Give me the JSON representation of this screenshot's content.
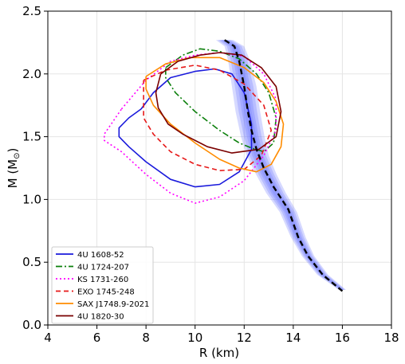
{
  "chart_data": {
    "type": "line",
    "xlabel": "R (km)",
    "ylabel_main": "M (M",
    "ylabel_sub": "⊙",
    "ylabel_close": ")",
    "xlim": [
      4,
      18
    ],
    "ylim": [
      0.0,
      2.5
    ],
    "xticks": [
      4,
      6,
      8,
      10,
      12,
      14,
      16,
      18
    ],
    "yticks": [
      0.0,
      0.5,
      1.0,
      1.5,
      2.0,
      2.5
    ],
    "xtick_labels": [
      "4",
      "6",
      "8",
      "10",
      "12",
      "14",
      "16",
      "18"
    ],
    "ytick_labels": [
      "0.0",
      "0.5",
      "1.0",
      "1.5",
      "2.0",
      "2.5"
    ],
    "grid": true,
    "legend_position": "lower-left",
    "band": {
      "color": "#6a78ff",
      "center": [
        [
          11.2,
          2.27
        ],
        [
          11.6,
          2.22
        ],
        [
          11.8,
          2.1
        ],
        [
          12.0,
          1.9
        ],
        [
          12.15,
          1.7
        ],
        [
          12.35,
          1.5
        ],
        [
          12.55,
          1.35
        ],
        [
          12.9,
          1.2
        ],
        [
          13.3,
          1.05
        ],
        [
          13.8,
          0.9
        ],
        [
          14.2,
          0.7
        ],
        [
          14.6,
          0.55
        ],
        [
          15.2,
          0.4
        ],
        [
          16.0,
          0.28
        ]
      ],
      "half_width": [
        0.35,
        0.4,
        0.45,
        0.5,
        0.5,
        0.48,
        0.45,
        0.42,
        0.4,
        0.35,
        0.3,
        0.25,
        0.22,
        0.15
      ]
    },
    "median": {
      "color": "#000000",
      "style": "dashed",
      "points": [
        [
          11.2,
          2.27
        ],
        [
          11.6,
          2.22
        ],
        [
          11.8,
          2.1
        ],
        [
          12.0,
          1.9
        ],
        [
          12.15,
          1.7
        ],
        [
          12.3,
          1.55
        ],
        [
          12.5,
          1.4
        ],
        [
          12.8,
          1.25
        ],
        [
          13.2,
          1.1
        ],
        [
          13.8,
          0.92
        ],
        [
          14.2,
          0.7
        ],
        [
          14.6,
          0.55
        ],
        [
          15.2,
          0.4
        ],
        [
          16.0,
          0.27
        ]
      ]
    },
    "series": [
      {
        "name": "4U 1608-52",
        "color": "#1a1adc",
        "style": "solid",
        "points": [
          [
            7.8,
            1.72
          ],
          [
            8.3,
            1.85
          ],
          [
            9.0,
            1.97
          ],
          [
            10.0,
            2.02
          ],
          [
            10.8,
            2.04
          ],
          [
            11.5,
            2.0
          ],
          [
            12.0,
            1.85
          ],
          [
            12.3,
            1.6
          ],
          [
            12.3,
            1.4
          ],
          [
            11.8,
            1.22
          ],
          [
            11.0,
            1.12
          ],
          [
            10.0,
            1.1
          ],
          [
            9.0,
            1.16
          ],
          [
            8.0,
            1.3
          ],
          [
            7.3,
            1.42
          ],
          [
            6.9,
            1.5
          ],
          [
            6.9,
            1.57
          ],
          [
            7.3,
            1.65
          ],
          [
            7.8,
            1.72
          ]
        ]
      },
      {
        "name": "4U 1724-207",
        "color": "#0b7f0b",
        "style": "dashdot",
        "points": [
          [
            8.8,
            2.05
          ],
          [
            9.5,
            2.15
          ],
          [
            10.2,
            2.2
          ],
          [
            11.0,
            2.18
          ],
          [
            11.8,
            2.12
          ],
          [
            12.5,
            2.0
          ],
          [
            13.0,
            1.85
          ],
          [
            13.3,
            1.65
          ],
          [
            13.2,
            1.45
          ],
          [
            12.8,
            1.38
          ],
          [
            12.3,
            1.41
          ],
          [
            11.8,
            1.45
          ],
          [
            11.0,
            1.55
          ],
          [
            10.0,
            1.7
          ],
          [
            9.2,
            1.85
          ],
          [
            8.8,
            1.97
          ],
          [
            8.8,
            2.05
          ]
        ]
      },
      {
        "name": "KS 1731-260",
        "color": "#ff00ff",
        "style": "dotted",
        "points": [
          [
            7.0,
            1.72
          ],
          [
            8.0,
            1.95
          ],
          [
            9.0,
            2.1
          ],
          [
            10.0,
            2.15
          ],
          [
            11.0,
            2.17
          ],
          [
            12.0,
            2.14
          ],
          [
            12.8,
            2.0
          ],
          [
            13.3,
            1.8
          ],
          [
            13.3,
            1.55
          ],
          [
            12.8,
            1.35
          ],
          [
            12.0,
            1.15
          ],
          [
            11.0,
            1.02
          ],
          [
            10.0,
            0.97
          ],
          [
            9.0,
            1.05
          ],
          [
            8.0,
            1.2
          ],
          [
            7.0,
            1.38
          ],
          [
            6.3,
            1.47
          ],
          [
            6.3,
            1.52
          ],
          [
            7.0,
            1.72
          ]
        ]
      },
      {
        "name": "EXO 1745-248",
        "color": "#e61919",
        "style": "dashed",
        "points": [
          [
            7.9,
            1.95
          ],
          [
            8.8,
            2.03
          ],
          [
            10.0,
            2.07
          ],
          [
            11.0,
            2.03
          ],
          [
            12.0,
            1.92
          ],
          [
            12.8,
            1.75
          ],
          [
            13.1,
            1.55
          ],
          [
            12.7,
            1.35
          ],
          [
            12.0,
            1.24
          ],
          [
            11.0,
            1.23
          ],
          [
            10.0,
            1.28
          ],
          [
            9.0,
            1.38
          ],
          [
            8.3,
            1.52
          ],
          [
            7.9,
            1.65
          ],
          [
            7.9,
            1.95
          ]
        ]
      },
      {
        "name": "SAX J1748.9-2021",
        "color": "#ff8c00",
        "style": "solid",
        "points": [
          [
            8.0,
            1.98
          ],
          [
            8.8,
            2.08
          ],
          [
            9.8,
            2.13
          ],
          [
            11.0,
            2.13
          ],
          [
            12.0,
            2.05
          ],
          [
            12.8,
            1.93
          ],
          [
            13.3,
            1.78
          ],
          [
            13.6,
            1.6
          ],
          [
            13.5,
            1.42
          ],
          [
            13.1,
            1.28
          ],
          [
            12.5,
            1.22
          ],
          [
            11.8,
            1.25
          ],
          [
            11.0,
            1.32
          ],
          [
            10.0,
            1.45
          ],
          [
            9.0,
            1.6
          ],
          [
            8.3,
            1.75
          ],
          [
            8.0,
            1.88
          ],
          [
            8.0,
            1.98
          ]
        ]
      },
      {
        "name": "4U 1820-30",
        "color": "#7a0000",
        "style": "solid",
        "points": [
          [
            8.6,
            2.0
          ],
          [
            9.3,
            2.1
          ],
          [
            10.2,
            2.15
          ],
          [
            11.0,
            2.17
          ],
          [
            11.9,
            2.15
          ],
          [
            12.7,
            2.05
          ],
          [
            13.3,
            1.9
          ],
          [
            13.5,
            1.7
          ],
          [
            13.3,
            1.5
          ],
          [
            12.6,
            1.4
          ],
          [
            11.5,
            1.37
          ],
          [
            10.5,
            1.42
          ],
          [
            9.5,
            1.52
          ],
          [
            8.9,
            1.6
          ],
          [
            8.5,
            1.73
          ],
          [
            8.4,
            1.85
          ],
          [
            8.6,
            2.0
          ]
        ]
      }
    ]
  }
}
